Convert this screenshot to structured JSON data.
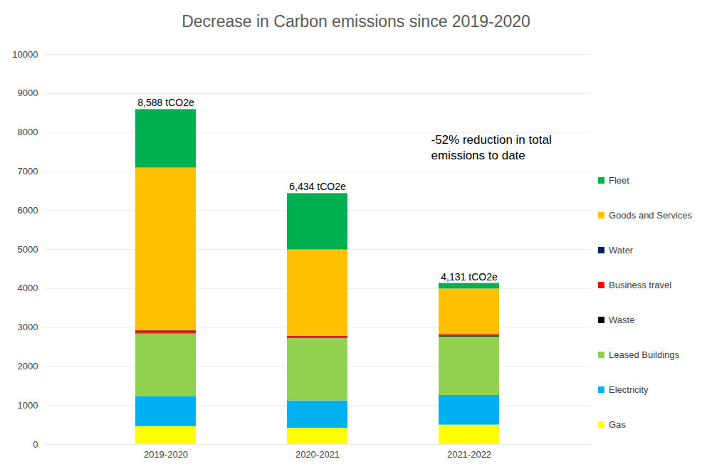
{
  "chart_data": {
    "type": "bar",
    "stacked": true,
    "title": "Decrease in Carbon emissions since 2019-2020",
    "categories": [
      "2019-2020",
      "2020-2021",
      "2021-2022"
    ],
    "series": [
      {
        "name": "Gas",
        "color": "#ffff00",
        "values": [
          460,
          420,
          500
        ]
      },
      {
        "name": "Electricity",
        "color": "#00b0f0",
        "values": [
          770,
          700,
          760
        ]
      },
      {
        "name": "Leased Buildings",
        "color": "#92d050",
        "values": [
          1610,
          1600,
          1500
        ]
      },
      {
        "name": "Waste",
        "color": "#000000",
        "values": [
          15,
          10,
          15
        ]
      },
      {
        "name": "Business travel",
        "color": "#ff0000",
        "values": [
          60,
          40,
          40
        ]
      },
      {
        "name": "Water",
        "color": "#002060",
        "values": [
          5,
          5,
          5
        ]
      },
      {
        "name": "Goods and Services",
        "color": "#ffc000",
        "values": [
          4170,
          2215,
          1170
        ]
      },
      {
        "name": "Fleet",
        "color": "#00b050",
        "values": [
          1498,
          1444,
          141
        ]
      }
    ],
    "totals": [
      8588,
      6434,
      4131
    ],
    "total_labels": [
      "8,588 tCO2e",
      "6,434 tCO2e",
      "4,131 tCO2e"
    ],
    "annotation": "-52% reduction in total emissions to date",
    "ylim": [
      0,
      10000
    ],
    "yticks": [
      0,
      1000,
      2000,
      3000,
      4000,
      5000,
      6000,
      7000,
      8000,
      9000,
      10000
    ],
    "grid": true,
    "legend": "right"
  }
}
